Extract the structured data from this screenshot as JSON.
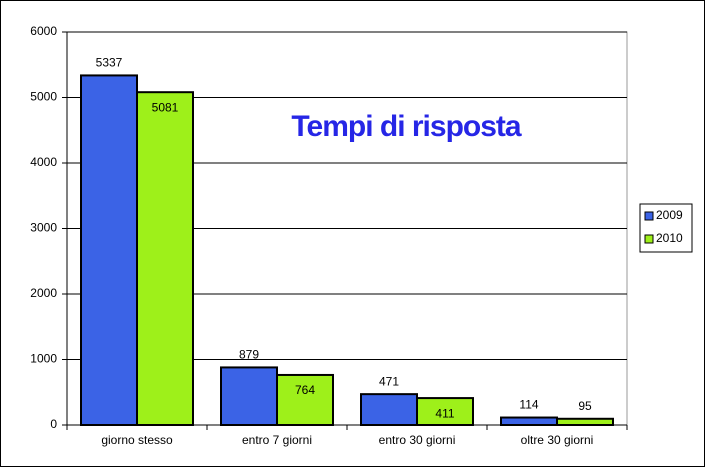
{
  "chart_data": {
    "type": "bar",
    "title": "Tempi di risposta",
    "categories": [
      "giorno stesso",
      "entro 7 giorni",
      "entro 30 giorni",
      "oltre 30 giorni"
    ],
    "series": [
      {
        "name": "2009",
        "color": "#3b63e6",
        "values": [
          5337,
          879,
          471,
          114
        ]
      },
      {
        "name": "2010",
        "color": "#9ef01a",
        "values": [
          5081,
          764,
          411,
          95
        ]
      }
    ],
    "ylim": [
      0,
      6000
    ],
    "yticks": [
      0,
      1000,
      2000,
      3000,
      4000,
      5000,
      6000
    ],
    "grid": true,
    "legend": "right"
  }
}
